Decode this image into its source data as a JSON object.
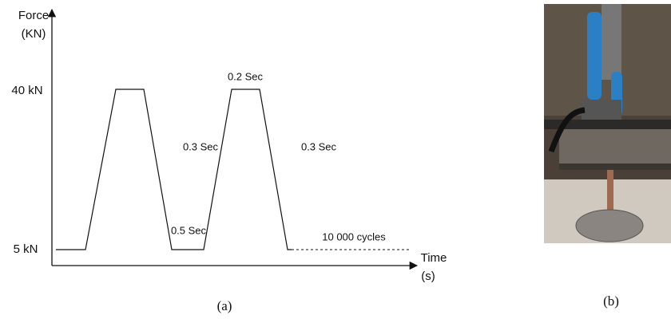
{
  "panel_a": {
    "y_axis_label": [
      "Force",
      "(KN)"
    ],
    "x_axis_label": [
      "Time",
      "(s)"
    ],
    "level_high": "40 kN",
    "level_low": "5 kN",
    "annotations": {
      "hold_high": "0.2 Sec",
      "ramp_up": "0.3 Sec",
      "ramp_down": "0.3 Sec",
      "hold_low": "0.5 Sec",
      "cycles": "10 000  cycles"
    },
    "caption": "(a)"
  },
  "panel_b": {
    "caption": "(b)"
  }
}
